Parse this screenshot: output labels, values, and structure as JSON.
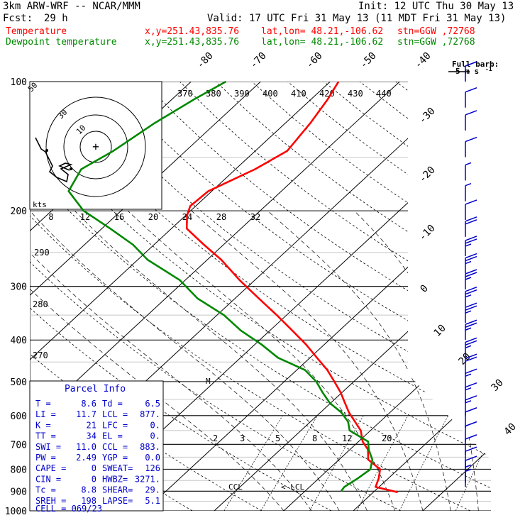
{
  "header": {
    "model": "3km ARW-WRF -- NCAR/MMM",
    "init": "Init: 12 UTC Thu 30 May 13",
    "fcst_label": "Fcst:",
    "fcst_value": "29 h",
    "valid": "Valid: 17 UTC Fri 31 May 13 (11 MDT Fri 31 May 13)",
    "temperature_line": "Temperature",
    "dewpoint_line": "Dewpoint temperature",
    "loc_xy": "x,y=251.43,835.76",
    "loc_latlon": "lat,lon= 48.21,-106.62",
    "loc_stn": "stn=GGW ,72768",
    "colors": {
      "temperature": "#ff0000",
      "dewpoint": "#008800",
      "barbs": "#0000cc"
    }
  },
  "barb_legend": {
    "title": "Full barb:",
    "value": "5 m s",
    "superscript": "-1"
  },
  "chart_data": {
    "type": "line",
    "title": "",
    "ylabel": "",
    "xlabel": "",
    "pressure_axis": {
      "scale": "log",
      "range_hpa": [
        1000,
        100
      ],
      "ticks": [
        "100",
        "200",
        "300",
        "400",
        "500",
        "600",
        "700",
        "800",
        "900",
        "1000"
      ]
    },
    "isotherm_labels": [
      "-80",
      "-70",
      "-60",
      "-50",
      "-40",
      "-30",
      "-20",
      "-10",
      "0",
      "10",
      "20",
      "30",
      "40"
    ],
    "isotherm_values": [
      -80,
      -70,
      -60,
      -50,
      -40,
      -30,
      -20,
      -10,
      0,
      10,
      20,
      30,
      40
    ],
    "theta_labels": [
      "370",
      "380",
      "390",
      "400",
      "410",
      "420",
      "430",
      "440"
    ],
    "hodograph_speed_labels": [
      "8",
      "12",
      "16",
      "20",
      "24",
      "28",
      "32"
    ],
    "hodograph_unit": "kts",
    "hodograph_ring_labels": [
      "50",
      "30",
      "10"
    ],
    "dry_adiabat_labels": [
      "290",
      "280",
      "270"
    ],
    "mixing_ratio_labels": [
      "2",
      "3",
      "5",
      "8",
      "12",
      "20"
    ],
    "level_markers": [
      "CCL",
      "<-LCL",
      "M"
    ],
    "series": [
      {
        "name": "Temperature",
        "color": "#ff0000",
        "pressure": [
          905,
          880,
          840,
          800,
          760,
          720,
          690,
          650,
          620,
          590,
          560,
          530,
          500,
          470,
          440,
          410,
          380,
          350,
          320,
          290,
          260,
          240,
          220,
          205,
          195,
          180,
          160,
          145,
          125,
          110,
          100
        ],
        "temp": [
          13.5,
          9.5,
          8.6,
          7.4,
          4.2,
          2.6,
          0.6,
          -1.4,
          -3.6,
          -5.9,
          -8.0,
          -10.2,
          -12.8,
          -15.6,
          -19.0,
          -22.6,
          -26.8,
          -31.4,
          -36.6,
          -42.2,
          -48.0,
          -52.8,
          -57.8,
          -59.8,
          -60.8,
          -60.5,
          -57.2,
          -55.4,
          -56.4,
          -57.6,
          -58.8
        ]
      },
      {
        "name": "Dewpoint temperature",
        "color": "#008800",
        "pressure": [
          900,
          880,
          840,
          800,
          760,
          720,
          690,
          650,
          620,
          590,
          560,
          530,
          500,
          470,
          440,
          410,
          380,
          350,
          320,
          290,
          260,
          240,
          220,
          200,
          180,
          160,
          145,
          125,
          110,
          100
        ],
        "temp": [
          5.2,
          5.0,
          5.6,
          6.0,
          4.8,
          2.7,
          1.4,
          -3.0,
          -4.6,
          -7.0,
          -10.2,
          -12.8,
          -15.4,
          -18.8,
          -24.6,
          -29.0,
          -34.2,
          -39.0,
          -45.4,
          -50.8,
          -58.6,
          -63.0,
          -68.8,
          -75.4,
          -80.6,
          -82.2,
          -80.4,
          -78.8,
          -76.8,
          -75.0
        ]
      }
    ],
    "wind_barbs": [
      {
        "pressure": 100,
        "speed_ms": 10
      },
      {
        "pressure": 115,
        "speed_ms": 10
      },
      {
        "pressure": 130,
        "speed_ms": 10
      },
      {
        "pressure": 150,
        "speed_ms": 10
      },
      {
        "pressure": 170,
        "speed_ms": 5
      },
      {
        "pressure": 190,
        "speed_ms": 5
      },
      {
        "pressure": 210,
        "speed_ms": 10
      },
      {
        "pressure": 230,
        "speed_ms": 20
      },
      {
        "pressure": 255,
        "speed_ms": 25
      },
      {
        "pressure": 280,
        "speed_ms": 25
      },
      {
        "pressure": 305,
        "speed_ms": 25
      },
      {
        "pressure": 335,
        "speed_ms": 25
      },
      {
        "pressure": 365,
        "speed_ms": 25
      },
      {
        "pressure": 400,
        "speed_ms": 25
      },
      {
        "pressure": 440,
        "speed_ms": 25
      },
      {
        "pressure": 480,
        "speed_ms": 20
      },
      {
        "pressure": 520,
        "speed_ms": 15
      },
      {
        "pressure": 560,
        "speed_ms": 15
      },
      {
        "pressure": 600,
        "speed_ms": 15
      },
      {
        "pressure": 640,
        "speed_ms": 10
      },
      {
        "pressure": 690,
        "speed_ms": 10
      },
      {
        "pressure": 740,
        "speed_ms": 10
      },
      {
        "pressure": 790,
        "speed_ms": 10
      },
      {
        "pressure": 830,
        "speed_ms": 10
      },
      {
        "pressure": 860,
        "speed_ms": 5
      },
      {
        "pressure": 880,
        "speed_ms": 5
      }
    ]
  },
  "parcel_info": {
    "title": "Parcel Info",
    "rows": [
      [
        "T  =",
        "8.6",
        "Td =",
        "6.5"
      ],
      [
        "LI =",
        "11.7",
        "LCL =",
        "877."
      ],
      [
        "K  =",
        "21",
        "LFC =",
        "0."
      ],
      [
        "TT =",
        "34",
        "EL  =",
        "0."
      ],
      [
        "SWI =",
        "11.0",
        "CCL =",
        "883."
      ],
      [
        "PW =",
        "2.49",
        "YGP =",
        "0.0"
      ],
      [
        "CAPE =",
        "0",
        "SWEAT=",
        "126"
      ],
      [
        "CIN  =",
        "0",
        "HWBZ=",
        "3271."
      ],
      [
        "Tc =",
        "8.8",
        "SHEAR=",
        "29."
      ],
      [
        "SREH =",
        "198",
        "LAPSE=",
        "5.1"
      ]
    ],
    "cell": "CELL = 069/23"
  }
}
